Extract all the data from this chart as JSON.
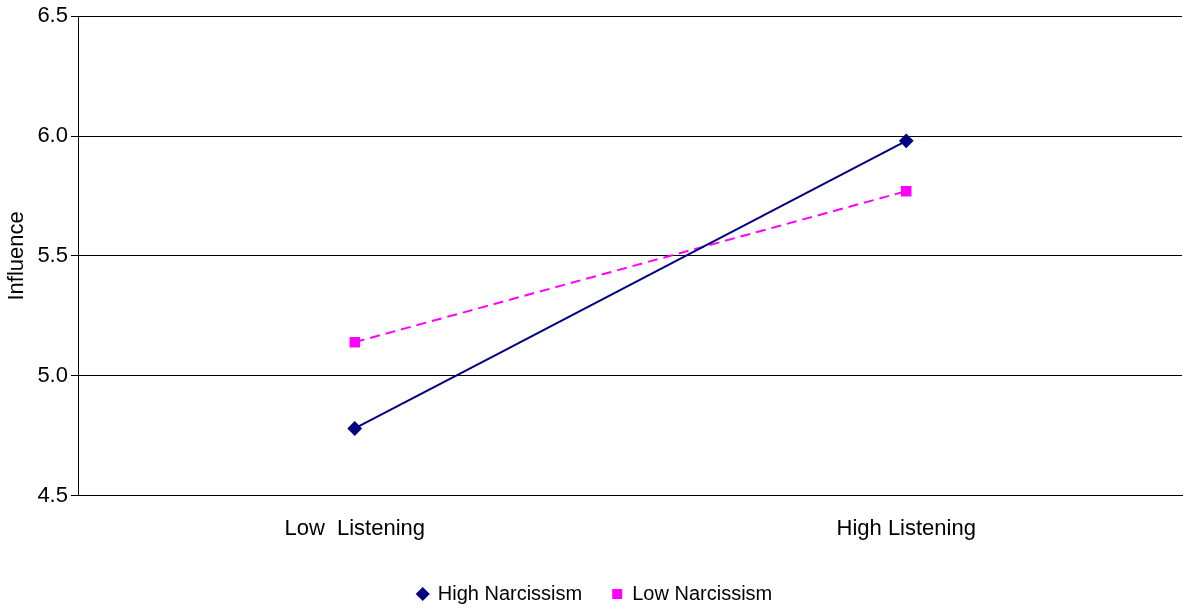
{
  "chart_data": {
    "type": "line",
    "ylabel": "Influence",
    "categories": [
      "Low  Listening",
      "High Listening"
    ],
    "series": [
      {
        "name": "High Narcissism",
        "color": "#000080",
        "values": [
          4.78,
          5.98
        ],
        "marker": "diamond",
        "line_style": "solid"
      },
      {
        "name": "Low Narcissism",
        "color": "#ff00ff",
        "values": [
          5.14,
          5.77
        ],
        "marker": "square",
        "line_style": "dashed"
      }
    ],
    "ylim": [
      4.5,
      6.5
    ],
    "yticks": [
      {
        "value": 4.5,
        "label": "4.5"
      },
      {
        "value": 5,
        "label": "5.0"
      },
      {
        "value": 5.5,
        "label": "5.5"
      },
      {
        "value": 6,
        "label": "6.0"
      },
      {
        "value": 6.5,
        "label": "6.5"
      }
    ],
    "grid": "y",
    "legend": "bottom"
  }
}
